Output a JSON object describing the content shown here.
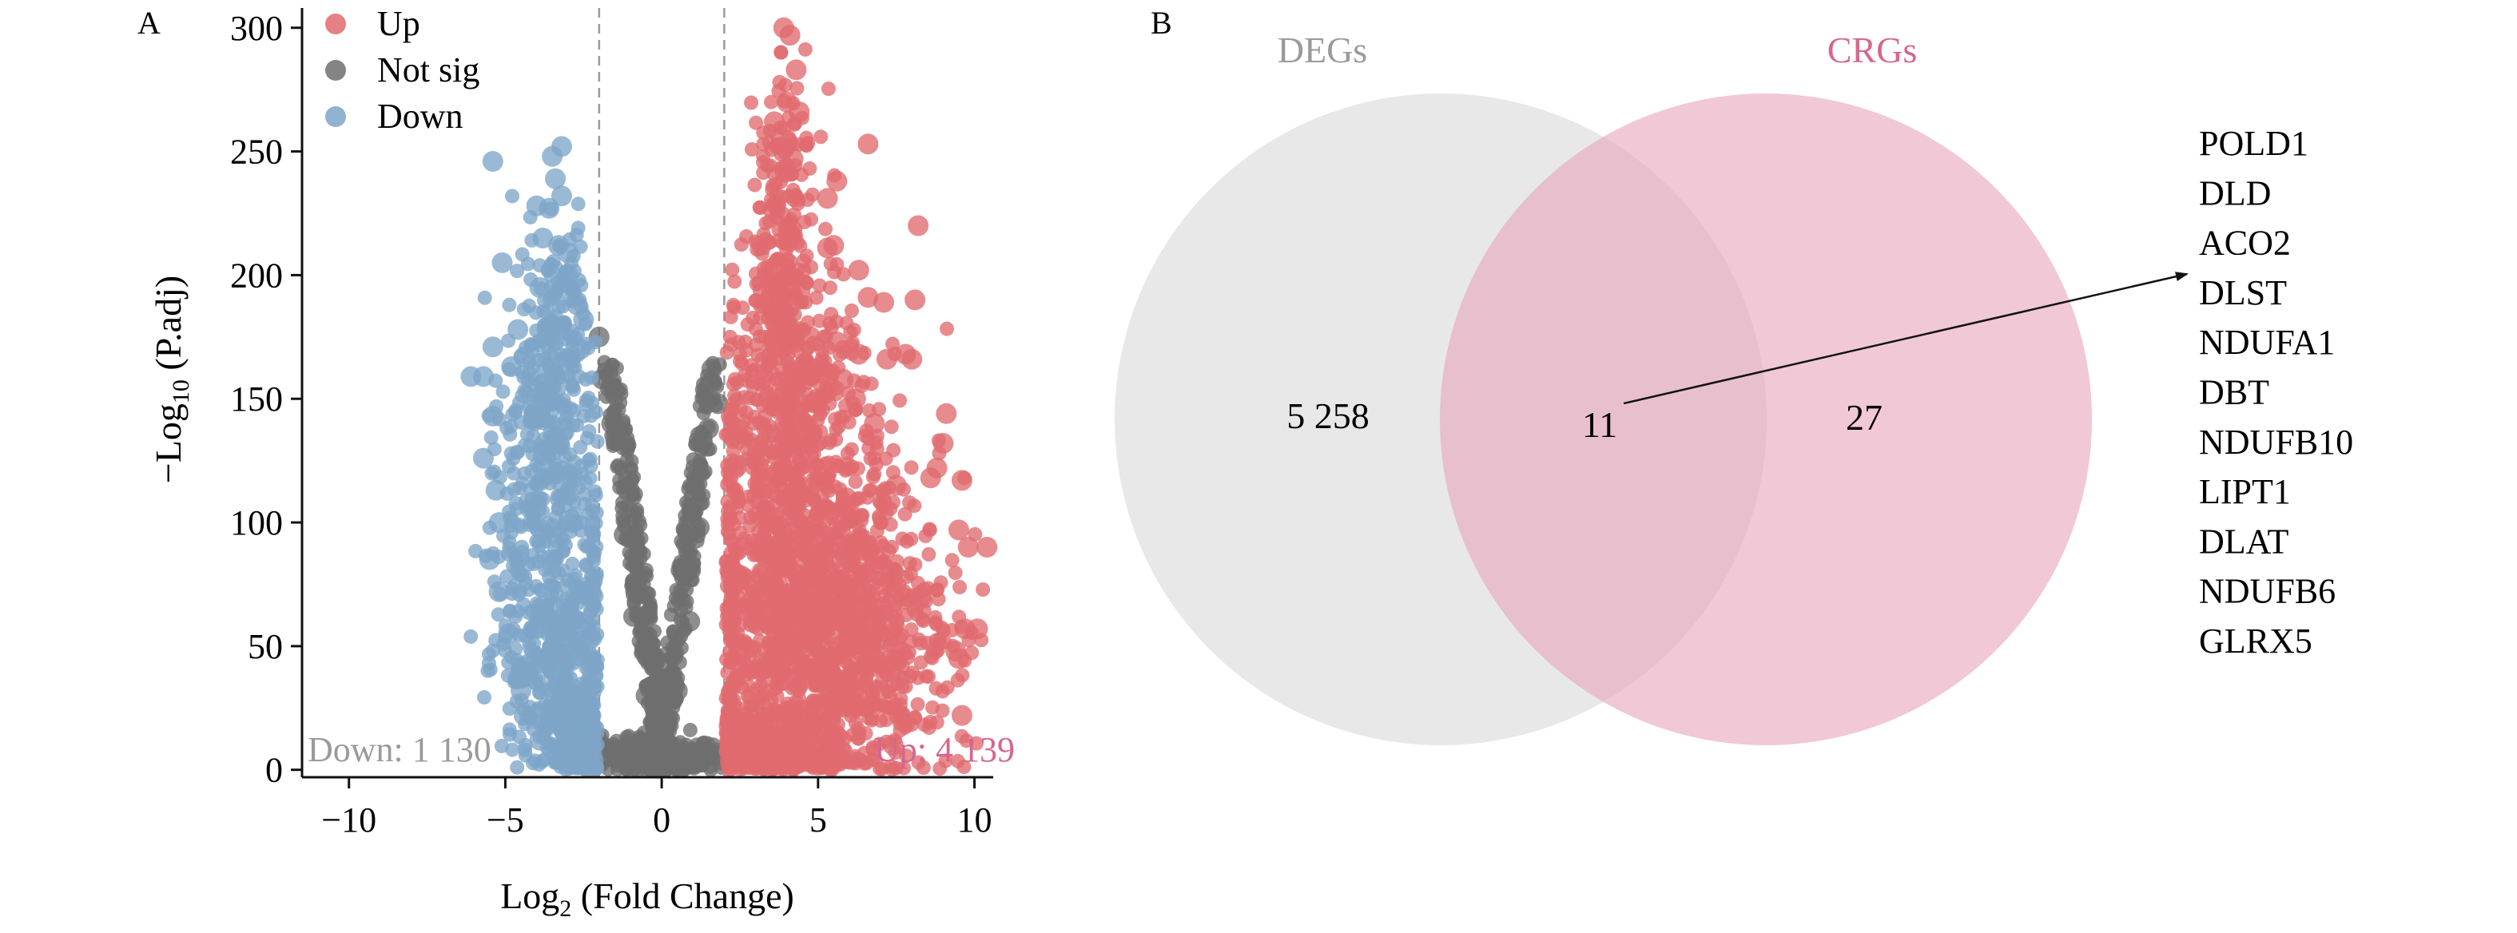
{
  "panels": {
    "a_label": "A",
    "b_label": "B"
  },
  "colors": {
    "up": "#e06a6e",
    "not_sig": "#6e6e6e",
    "down": "#7ea5c8",
    "degs_circle": "#d9d9d9",
    "crgs_circle": "#e8a6bb",
    "degs_text": "#9a9a9a",
    "crgs_text": "#d6668c",
    "down_annot": "#9a9a9a",
    "up_annot": "#d6668c"
  },
  "chart_data": [
    {
      "type": "scatter",
      "xlabel_main": "Log",
      "xlabel_sub": "2",
      "xlabel_rest": " (Fold Change)",
      "ylabel_main": "−Log",
      "ylabel_sub": "10",
      "ylabel_rest": " (P.adj)",
      "xlim": [
        -11.5,
        10.6
      ],
      "ylim": [
        -3,
        308
      ],
      "xticks": [
        -10,
        -5,
        0,
        5,
        10
      ],
      "xtick_labels": [
        "−10",
        "−5",
        "0",
        "5",
        "10"
      ],
      "yticks": [
        0,
        50,
        100,
        150,
        200,
        250,
        300
      ],
      "ytick_labels": [
        "0",
        "50",
        "100",
        "150",
        "200",
        "250",
        "300"
      ],
      "thresholds_x": [
        -2,
        2
      ],
      "legend": [
        {
          "key": "up",
          "label": "Up"
        },
        {
          "key": "not_sig",
          "label": "Not sig"
        },
        {
          "key": "down",
          "label": "Down"
        }
      ],
      "annotations": {
        "down": "Down: 1 130",
        "up": "Up: 4 139"
      },
      "series": [
        {
          "key": "down",
          "label": "Down",
          "points": [
            [
              -5.4,
              246
            ],
            [
              -3.6,
              227
            ],
            [
              -3.2,
              252
            ],
            [
              -3.5,
              248
            ],
            [
              -3.4,
              239
            ],
            [
              -4.0,
              228
            ],
            [
              -3.2,
              232
            ],
            [
              -3.8,
              215
            ],
            [
              -3.3,
              212
            ],
            [
              -3.0,
              209
            ],
            [
              -5.1,
              205
            ],
            [
              -2.7,
              188
            ],
            [
              -2.5,
              182
            ],
            [
              -4.6,
              178
            ],
            [
              -5.4,
              171
            ],
            [
              -5.7,
              159
            ],
            [
              -6.1,
              159
            ],
            [
              -4.8,
              163
            ],
            [
              -4.4,
              167
            ],
            [
              -5.4,
              143
            ],
            [
              -5.7,
              126
            ],
            [
              -5.3,
              113
            ],
            [
              -5.2,
              100
            ],
            [
              -5.5,
              85
            ],
            [
              -5.2,
              72
            ],
            [
              -4.9,
              55
            ],
            [
              -4.6,
              37
            ],
            [
              -4.4,
              22
            ],
            [
              -4.5,
              32
            ],
            [
              -3.9,
              12
            ],
            [
              -3.5,
              8
            ],
            [
              -2.8,
              9
            ],
            [
              -2.4,
              16
            ],
            [
              -4.0,
              142
            ],
            [
              -3.7,
              152
            ],
            [
              -3.1,
              160
            ],
            [
              -2.6,
              170
            ],
            [
              -3.9,
              195
            ],
            [
              -3.0,
              200
            ]
          ],
          "clouds": [
            {
              "cx": -3.4,
              "cy": 170,
              "sx": 0.55,
              "sy": 24,
              "n": 150
            },
            {
              "cx": -3.7,
              "cy": 115,
              "sx": 0.85,
              "sy": 35,
              "n": 320
            },
            {
              "cx": -3.3,
              "cy": 45,
              "sx": 0.9,
              "sy": 26,
              "n": 420
            },
            {
              "cx": -2.6,
              "cy": 12,
              "sx": 0.4,
              "sy": 8,
              "n": 140
            }
          ]
        },
        {
          "key": "not_sig",
          "label": "Not sig",
          "points": [
            [
              -2.0,
              175
            ],
            [
              -1.9,
              158
            ],
            [
              1.6,
              162
            ],
            [
              1.8,
              148
            ],
            [
              -1.6,
              140
            ],
            [
              1.5,
              138
            ],
            [
              -1.2,
              95
            ],
            [
              1.2,
              98
            ],
            [
              -0.9,
              62
            ],
            [
              0.9,
              60
            ],
            [
              -0.5,
              30
            ],
            [
              0.5,
              32
            ]
          ],
          "clouds": [
            {
              "cx": 0.0,
              "cy": 5,
              "sx": 0.9,
              "sy": 4,
              "n": 260
            },
            {
              "vshape": true,
              "n": 620
            }
          ]
        },
        {
          "key": "up",
          "label": "Up",
          "points": [
            [
              3.9,
              300
            ],
            [
              4.1,
              297
            ],
            [
              4.3,
              283
            ],
            [
              4.0,
              270
            ],
            [
              3.6,
              262
            ],
            [
              4.4,
              266
            ],
            [
              4.2,
              247
            ],
            [
              6.6,
              253
            ],
            [
              5.6,
              238
            ],
            [
              5.3,
              231
            ],
            [
              3.8,
              224
            ],
            [
              8.2,
              220
            ],
            [
              5.3,
              211
            ],
            [
              5.5,
              212
            ],
            [
              6.6,
              191
            ],
            [
              7.1,
              189
            ],
            [
              6.3,
              202
            ],
            [
              8.1,
              190
            ],
            [
              7.8,
              168
            ],
            [
              7.2,
              166
            ],
            [
              5.6,
              173
            ],
            [
              5.8,
              158
            ],
            [
              6.3,
              168
            ],
            [
              8.0,
              166
            ],
            [
              9.1,
              144
            ],
            [
              9.0,
              132
            ],
            [
              8.8,
              122
            ],
            [
              9.6,
              117
            ],
            [
              8.6,
              118
            ],
            [
              10.4,
              90
            ],
            [
              9.8,
              90
            ],
            [
              9.5,
              97
            ],
            [
              9.7,
              57
            ],
            [
              10.1,
              57
            ],
            [
              9.4,
              48
            ],
            [
              9.5,
              45
            ],
            [
              9.6,
              22
            ],
            [
              7.6,
              22
            ],
            [
              7.4,
              10
            ],
            [
              7.0,
              32
            ],
            [
              8.3,
              70
            ],
            [
              6.2,
              150
            ],
            [
              5.0,
              150
            ],
            [
              6.8,
              140
            ],
            [
              7.5,
              115
            ],
            [
              5.9,
              110
            ]
          ],
          "clouds": [
            {
              "cx": 3.9,
              "cy": 210,
              "sx": 0.5,
              "sy": 38,
              "n": 240
            },
            {
              "cx": 4.2,
              "cy": 130,
              "sx": 1.3,
              "sy": 38,
              "n": 650
            },
            {
              "cx": 5.2,
              "cy": 55,
              "sx": 1.9,
              "sy": 30,
              "n": 1300
            },
            {
              "cx": 3.2,
              "cy": 10,
              "sx": 1.2,
              "sy": 7,
              "n": 260
            }
          ]
        }
      ]
    },
    {
      "type": "venn",
      "sets": [
        {
          "key": "degs",
          "label": "DEGs",
          "only": "5 258"
        },
        {
          "key": "crgs",
          "label": "CRGs",
          "only": "27"
        }
      ],
      "intersection": "11",
      "intersection_genes": [
        "POLD1",
        "DLD",
        "ACO2",
        "DLST",
        "NDUFA1",
        "DBT",
        "NDUFB10",
        "LIPT1",
        "DLAT",
        "NDUFB6",
        "GLRX5"
      ]
    }
  ]
}
